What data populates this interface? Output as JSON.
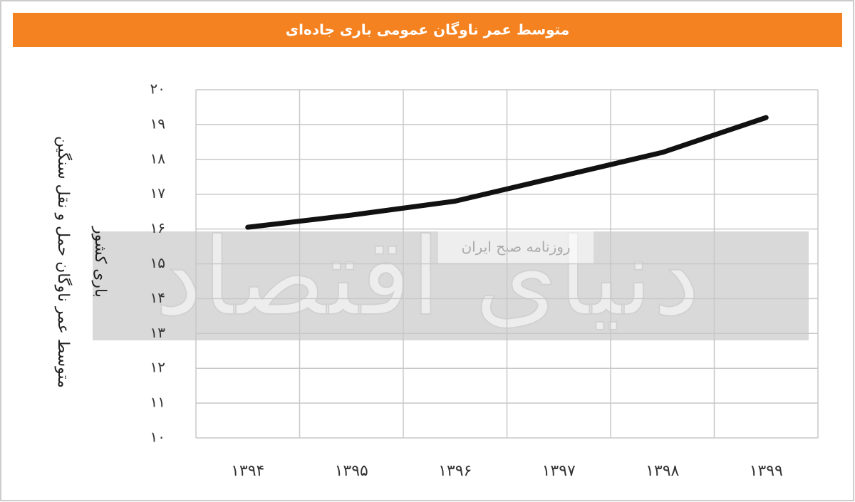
{
  "chart_data": {
    "type": "line",
    "title": "متوسط عمر ناوگان عمومی باری جاده‌ای",
    "ylabel": [
      "متوسط عمر ناوگان حمل و نقل سنگین",
      "باری کشور"
    ],
    "categories": [
      "۱۳۹۴",
      "۱۳۹۵",
      "۱۳۹۶",
      "۱۳۹۷",
      "۱۳۹۸",
      "۱۳۹۹"
    ],
    "series": [
      {
        "color": "#111111",
        "values": [
          16.05,
          16.4,
          16.8,
          17.5,
          18.2,
          19.2
        ]
      }
    ],
    "ylim": [
      10,
      20
    ],
    "yticks": [
      {
        "value": 10,
        "label": "۱۰"
      },
      {
        "value": 11,
        "label": "۱۱"
      },
      {
        "value": 12,
        "label": "۱۲"
      },
      {
        "value": 13,
        "label": "۱۳"
      },
      {
        "value": 14,
        "label": "۱۴"
      },
      {
        "value": 15,
        "label": "۱۵"
      },
      {
        "value": 16,
        "label": "۱۶"
      },
      {
        "value": 17,
        "label": "۱۷"
      },
      {
        "value": 18,
        "label": "۱۸"
      },
      {
        "value": 19,
        "label": "۱۹"
      },
      {
        "value": 20,
        "label": "۲۰"
      }
    ],
    "grid": true,
    "watermark": [
      "دنیای اقتصاد",
      "روزنامه صبح ایران"
    ]
  }
}
